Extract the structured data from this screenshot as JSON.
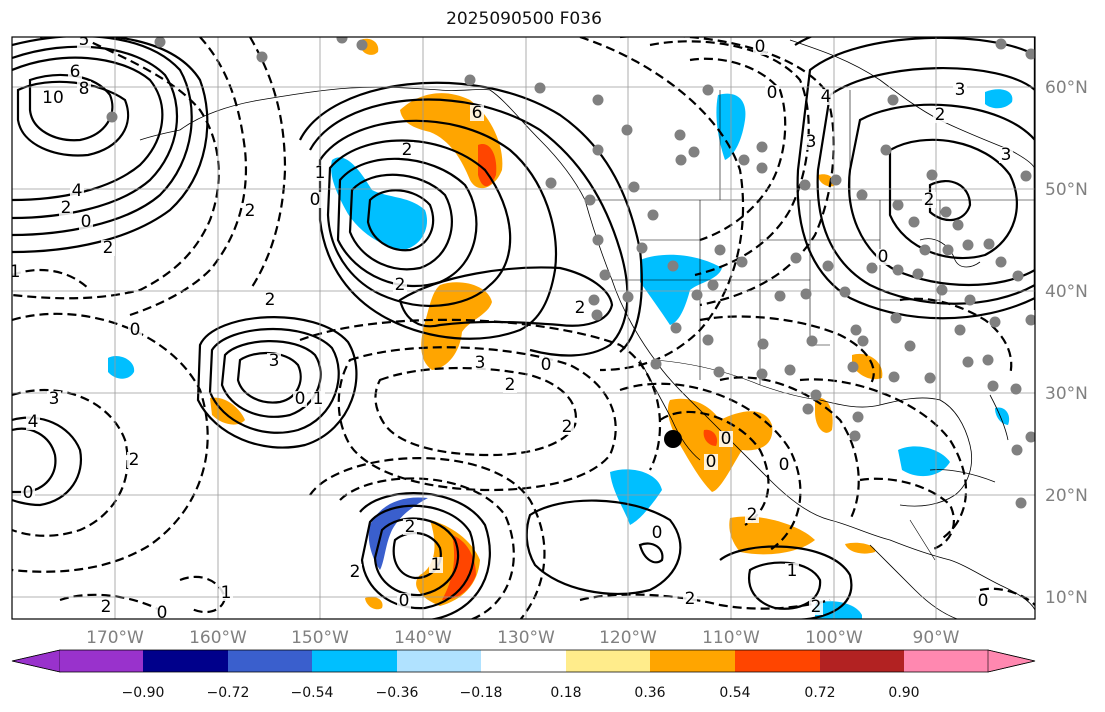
{
  "title": "2025090500 F036",
  "map": {
    "lon_labels": [
      "170°W",
      "160°W",
      "150°W",
      "140°W",
      "130°W",
      "120°W",
      "110°W",
      "100°W",
      "90°W"
    ],
    "lat_labels": [
      "60°N",
      "50°N",
      "40°N",
      "30°N",
      "20°N",
      "10°N"
    ],
    "contour_labels": [
      "5",
      "6",
      "10",
      "8",
      "4",
      "2",
      "0",
      "2",
      "1",
      "0",
      "3",
      "4",
      "3",
      "2",
      "1",
      "0",
      "2",
      "3",
      "2",
      "0",
      "0",
      "1",
      "2",
      "0",
      "2",
      "2",
      "1",
      "2",
      "0",
      "1",
      "2",
      "0",
      "2",
      "2",
      "0",
      "1",
      "2",
      "0",
      "0",
      "0",
      "0",
      "2",
      "2",
      "6",
      "2",
      "0",
      "3",
      "4",
      "3",
      "3",
      "2",
      "0",
      "2",
      "0"
    ],
    "shading_colors": {
      "strong_negative": "#00bfff",
      "weak_negative": "#3a5fcd",
      "positive": "#ffa500",
      "strong_positive": "#ff4500",
      "station": "#808080",
      "marker": "#000000"
    }
  },
  "colorbar": {
    "ticks": [
      "−0.90",
      "−0.72",
      "−0.54",
      "−0.36",
      "−0.18",
      "0.18",
      "0.36",
      "0.54",
      "0.72",
      "0.90"
    ],
    "colors": [
      "#9932cc",
      "#00008b",
      "#3a5fcd",
      "#00bfff",
      "#b0e2ff",
      "#ffffff",
      "#ffec8b",
      "#ffa500",
      "#ff4500",
      "#b22222",
      "#ff88b0",
      "#ff88b0"
    ]
  }
}
